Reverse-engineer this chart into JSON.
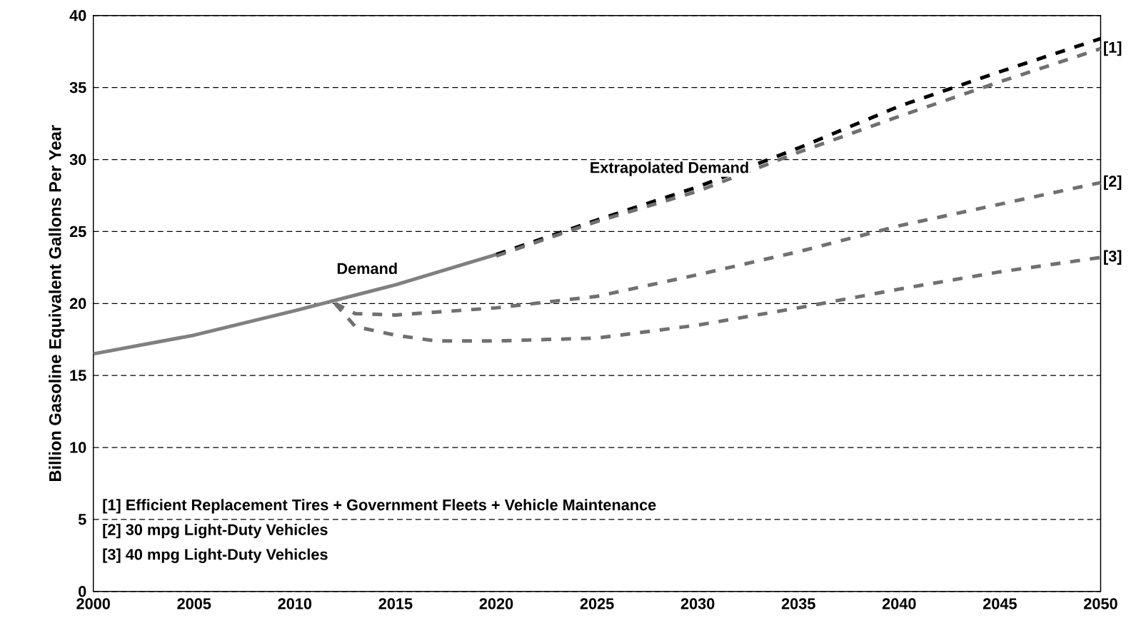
{
  "chart_data": {
    "type": "line",
    "ylabel": "Billion Gasoline Equivalent Gallons Per Year",
    "xlim": [
      2000,
      2050
    ],
    "ylim": [
      0,
      40
    ],
    "xticks": [
      2000,
      2005,
      2010,
      2015,
      2020,
      2025,
      2030,
      2035,
      2040,
      2045,
      2050
    ],
    "yticks": [
      0,
      5,
      10,
      15,
      20,
      25,
      30,
      35,
      40
    ],
    "grid": "y",
    "marker": "none",
    "series": [
      {
        "color": "#808080",
        "line_style": "solid",
        "x": [
          2000,
          2005,
          2010,
          2015,
          2020
        ],
        "values": [
          16.5,
          17.8,
          19.5,
          21.3,
          23.4
        ]
      },
      {
        "color": "#000000",
        "line_style": "dashed",
        "x": [
          2020,
          2025,
          2030,
          2035,
          2040,
          2045,
          2050
        ],
        "values": [
          23.4,
          25.8,
          28.1,
          30.8,
          33.7,
          36.1,
          38.4
        ]
      },
      {
        "name": "[1]",
        "color": "#707070",
        "line_style": "dashed",
        "x": [
          2020,
          2025,
          2030,
          2035,
          2040,
          2045,
          2050
        ],
        "values": [
          23.3,
          25.7,
          27.8,
          30.5,
          33.0,
          35.4,
          37.7
        ]
      },
      {
        "name": "[2]",
        "color": "#707070",
        "line_style": "dashed",
        "x": [
          2012,
          2013,
          2015,
          2020,
          2025,
          2030,
          2035,
          2040,
          2045,
          2050
        ],
        "values": [
          20.0,
          19.3,
          19.2,
          19.7,
          20.5,
          22.0,
          23.6,
          25.4,
          26.9,
          28.4
        ]
      },
      {
        "name": "[3]",
        "color": "#707070",
        "line_style": "dashed",
        "x": [
          2012,
          2013,
          2015,
          2017,
          2020,
          2025,
          2030,
          2035,
          2040,
          2045,
          2050
        ],
        "values": [
          20.0,
          18.4,
          17.8,
          17.4,
          17.4,
          17.6,
          18.5,
          19.7,
          21.0,
          22.2,
          23.2
        ]
      }
    ],
    "annotations": [
      {
        "text": "Demand",
        "x": 2015,
        "y": 21.3
      },
      {
        "text": "Extrapolated Demand",
        "x": 2030,
        "y": 28.1
      },
      "[1] Efficient Replacement Tires + Government Fleets + Vehicle Maintenance",
      "[2] 30 mpg Light-Duty Vehicles",
      "[3] 40 mpg Light-Duty Vehicles"
    ]
  }
}
